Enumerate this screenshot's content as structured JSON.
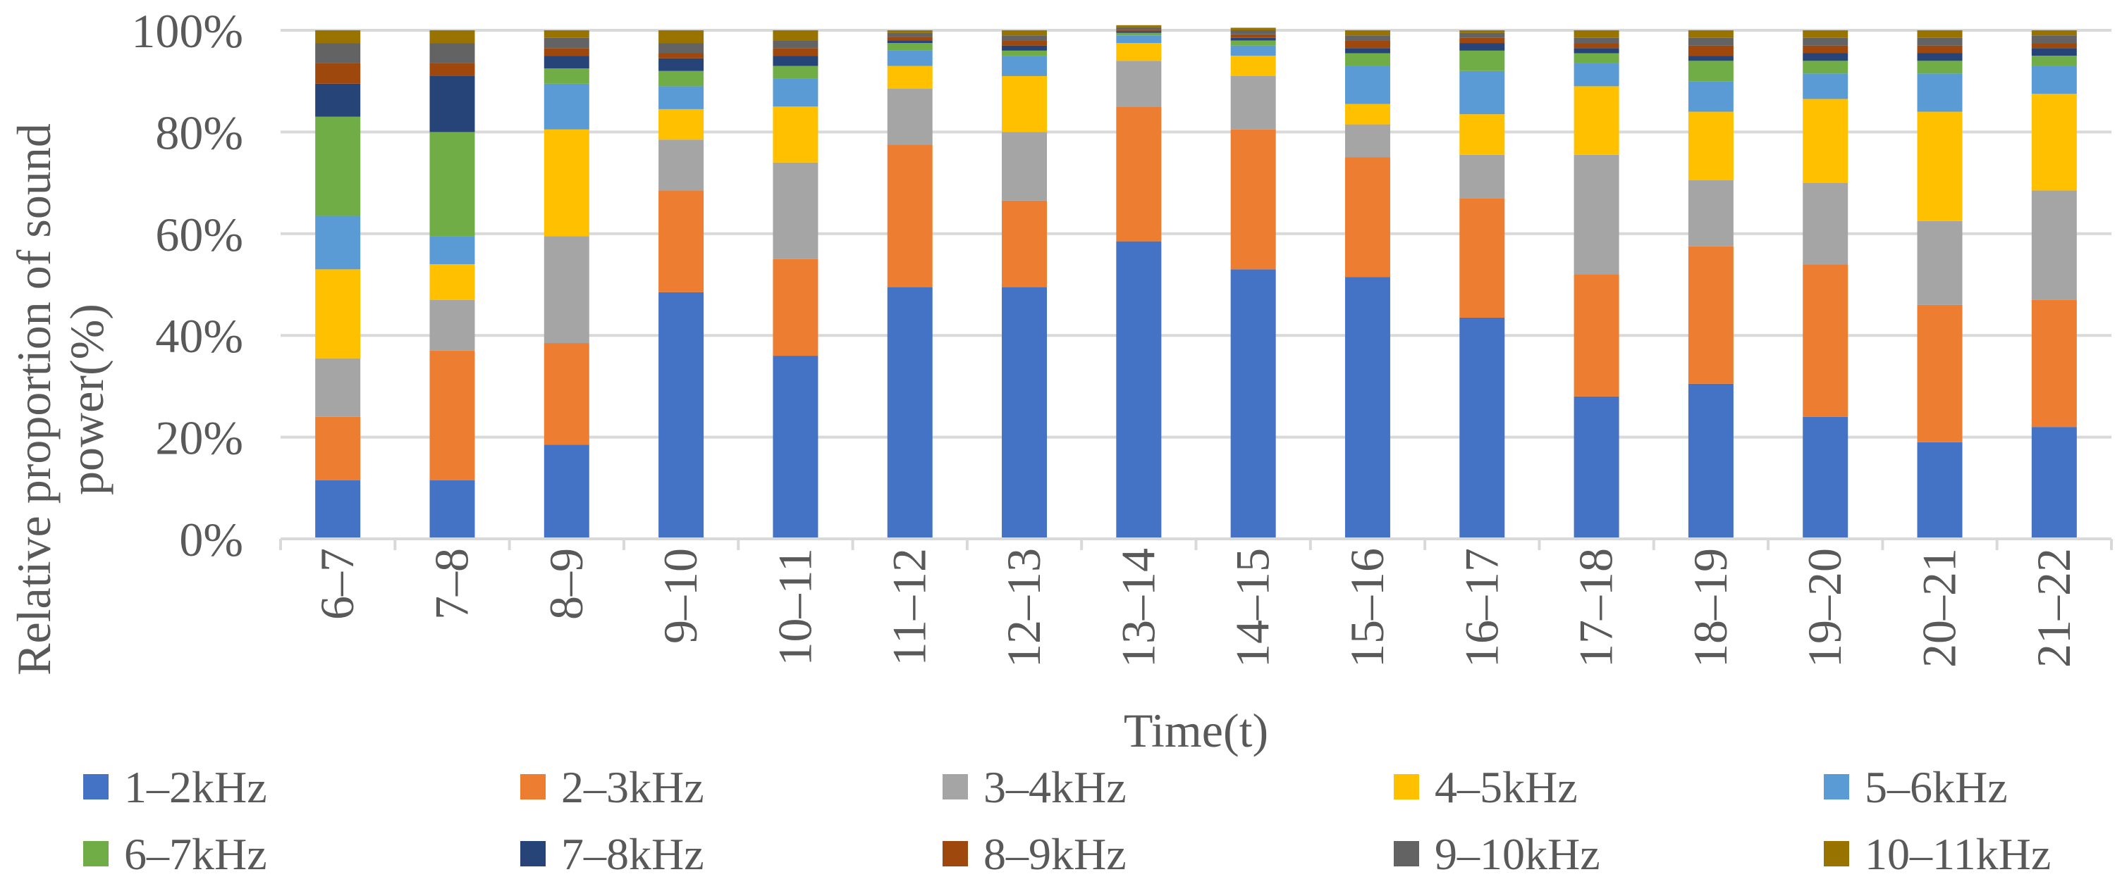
{
  "chart_data": {
    "type": "bar",
    "stacked": true,
    "title": "",
    "xlabel": "Time(t)",
    "ylabel": "Relative proportion of sound power(%)",
    "ylim": [
      0,
      100
    ],
    "y_ticks": [
      "0%",
      "20%",
      "40%",
      "60%",
      "80%",
      "100%"
    ],
    "grid": true,
    "legend_position": "bottom",
    "categories": [
      "6–7",
      "7–8",
      "8–9",
      "9–10",
      "10–11",
      "11–12",
      "12–13",
      "13–14",
      "14–15",
      "15–16",
      "16–17",
      "17–18",
      "18–19",
      "19–20",
      "20–21",
      "21–22"
    ],
    "series": [
      {
        "name": "1–2kHz",
        "color": "#4472C4",
        "values": [
          11.5,
          11.5,
          18.5,
          48.5,
          36,
          49.5,
          49.5,
          58.5,
          53,
          51.5,
          43.5,
          28,
          30.5,
          24,
          19,
          22
        ]
      },
      {
        "name": "2–3kHz",
        "color": "#ED7D31",
        "values": [
          12.5,
          25.5,
          20,
          20,
          19,
          28,
          17,
          26.5,
          27.5,
          23.5,
          23.5,
          24,
          27,
          30,
          27,
          25
        ]
      },
      {
        "name": "3–4kHz",
        "color": "#A5A5A5",
        "values": [
          11.5,
          10,
          21,
          10,
          19,
          11,
          13.5,
          9,
          10.5,
          6.5,
          8.5,
          23.5,
          13,
          16,
          16.5,
          21.5
        ]
      },
      {
        "name": "4–5kHz",
        "color": "#FFC000",
        "values": [
          17.5,
          7,
          21,
          6,
          11,
          4.5,
          11,
          3.5,
          4,
          4,
          8,
          13.5,
          13.5,
          16.5,
          21.5,
          19
        ]
      },
      {
        "name": "5–6kHz",
        "color": "#5B9BD5",
        "values": [
          10.5,
          5.5,
          9,
          4.5,
          5.5,
          3,
          4,
          1.5,
          2,
          7.5,
          8.5,
          4.5,
          6,
          5,
          7.5,
          5.5
        ]
      },
      {
        "name": "6–7kHz",
        "color": "#70AD47",
        "values": [
          19.5,
          20.5,
          3,
          3,
          2.5,
          1.5,
          1,
          0.5,
          1,
          2.5,
          4,
          2,
          4,
          2.5,
          2.5,
          2
        ]
      },
      {
        "name": "7–8kHz",
        "color": "#264478",
        "values": [
          6.5,
          11,
          2.5,
          2.5,
          2,
          0.5,
          1,
          0.3,
          0.5,
          1,
          1.5,
          1,
          1,
          1.5,
          1.5,
          1.5
        ]
      },
      {
        "name": "8–9kHz",
        "color": "#9E480E",
        "values": [
          4,
          2.5,
          1.5,
          1,
          1.5,
          0.7,
          1,
          0.3,
          0.7,
          1.5,
          1,
          1,
          2,
          1.5,
          1.5,
          1
        ]
      },
      {
        "name": "9–10kHz",
        "color": "#636363",
        "values": [
          4,
          4,
          2,
          2,
          1.5,
          0.8,
          1,
          0.5,
          0.8,
          1,
          1,
          1,
          1.5,
          1.5,
          1.5,
          1.5
        ]
      },
      {
        "name": "10–11kHz",
        "color": "#997300",
        "values": [
          2.5,
          2.5,
          1.5,
          2.5,
          2,
          0.5,
          1,
          0.4,
          0.5,
          1,
          0.5,
          1.5,
          1.5,
          1.5,
          1.5,
          1
        ]
      }
    ]
  }
}
